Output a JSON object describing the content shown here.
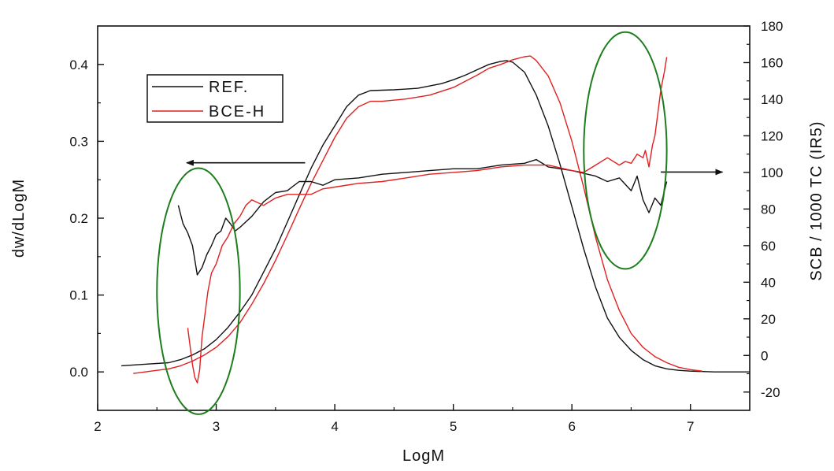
{
  "chart_data": {
    "type": "line",
    "xlabel": "LogM",
    "ylabel_left": "dw/dLogM",
    "ylabel_right": "SCB / 1000 TC (IR5)",
    "xlim": [
      2,
      7.5
    ],
    "ylim_left": [
      -0.05,
      0.45
    ],
    "ylim_right": [
      -30,
      180
    ],
    "xticks": [
      "2",
      "3",
      "4",
      "5",
      "6",
      "7"
    ],
    "yticks_left": [
      "0.0",
      "0.1",
      "0.2",
      "0.3",
      "0.4"
    ],
    "yticks_right": [
      "-20",
      "0",
      "20",
      "40",
      "60",
      "80",
      "100",
      "120",
      "140",
      "160",
      "180"
    ],
    "legend": {
      "position": "top-left",
      "entries": [
        "REF.",
        "BCE-H"
      ]
    },
    "colors": {
      "REF.": "#111111",
      "BCE-H": "#e02020",
      "highlight": "#1e7d1e"
    },
    "series": [
      {
        "name": "REF.",
        "axis": "left",
        "x": [
          2.2,
          2.4,
          2.6,
          2.7,
          2.8,
          2.9,
          3.0,
          3.1,
          3.2,
          3.3,
          3.4,
          3.5,
          3.6,
          3.7,
          3.8,
          3.9,
          4.0,
          4.1,
          4.2,
          4.3,
          4.5,
          4.7,
          4.9,
          5.0,
          5.1,
          5.2,
          5.3,
          5.4,
          5.45,
          5.5,
          5.6,
          5.7,
          5.8,
          5.9,
          6.0,
          6.1,
          6.2,
          6.3,
          6.4,
          6.5,
          6.6,
          6.7,
          6.8,
          6.9,
          7.0,
          7.2,
          7.5
        ],
        "y": [
          0.008,
          0.01,
          0.012,
          0.016,
          0.022,
          0.03,
          0.042,
          0.058,
          0.078,
          0.1,
          0.13,
          0.16,
          0.195,
          0.23,
          0.265,
          0.295,
          0.32,
          0.345,
          0.36,
          0.366,
          0.367,
          0.369,
          0.375,
          0.38,
          0.386,
          0.393,
          0.4,
          0.404,
          0.405,
          0.403,
          0.39,
          0.36,
          0.32,
          0.27,
          0.215,
          0.16,
          0.11,
          0.07,
          0.045,
          0.028,
          0.016,
          0.008,
          0.004,
          0.002,
          0.001,
          0.0,
          0.0
        ]
      },
      {
        "name": "BCE-H",
        "axis": "left",
        "x": [
          2.3,
          2.5,
          2.6,
          2.7,
          2.8,
          2.9,
          3.0,
          3.1,
          3.2,
          3.3,
          3.4,
          3.5,
          3.6,
          3.7,
          3.8,
          3.9,
          4.0,
          4.1,
          4.2,
          4.3,
          4.4,
          4.6,
          4.8,
          5.0,
          5.1,
          5.2,
          5.3,
          5.4,
          5.5,
          5.6,
          5.65,
          5.7,
          5.8,
          5.9,
          6.0,
          6.1,
          6.2,
          6.3,
          6.4,
          6.5,
          6.6,
          6.7,
          6.8,
          6.9,
          7.0,
          7.1
        ],
        "y": [
          -0.002,
          0.002,
          0.004,
          0.008,
          0.014,
          0.022,
          0.032,
          0.046,
          0.064,
          0.088,
          0.115,
          0.145,
          0.178,
          0.212,
          0.245,
          0.275,
          0.305,
          0.33,
          0.345,
          0.352,
          0.352,
          0.355,
          0.36,
          0.37,
          0.378,
          0.386,
          0.395,
          0.4,
          0.406,
          0.41,
          0.411,
          0.405,
          0.385,
          0.35,
          0.3,
          0.24,
          0.175,
          0.12,
          0.08,
          0.05,
          0.032,
          0.02,
          0.012,
          0.006,
          0.003,
          0.001
        ]
      },
      {
        "name": "REF. SCB",
        "axis": "right",
        "x": [
          2.68,
          2.72,
          2.76,
          2.8,
          2.84,
          2.88,
          2.92,
          2.96,
          3.0,
          3.04,
          3.08,
          3.12,
          3.16,
          3.2,
          3.3,
          3.4,
          3.5,
          3.6,
          3.7,
          3.8,
          3.9,
          4.0,
          4.2,
          4.4,
          4.6,
          4.8,
          5.0,
          5.2,
          5.4,
          5.6,
          5.7,
          5.8,
          6.0,
          6.2,
          6.3,
          6.4,
          6.5,
          6.55,
          6.6,
          6.65,
          6.7,
          6.75,
          6.8
        ],
        "y": [
          82,
          72,
          67,
          60,
          44,
          48,
          55,
          60,
          66,
          68,
          75,
          72,
          68,
          70,
          76,
          84,
          89,
          90,
          95,
          95,
          93,
          96,
          97,
          99,
          100,
          101,
          102,
          102,
          104,
          105,
          107,
          103,
          101,
          98,
          95,
          97,
          90,
          98,
          85,
          78,
          86,
          82,
          95
        ]
      },
      {
        "name": "BCE-H SCB",
        "axis": "right",
        "x": [
          2.76,
          2.78,
          2.8,
          2.82,
          2.84,
          2.86,
          2.88,
          2.9,
          2.93,
          2.96,
          3.0,
          3.05,
          3.1,
          3.15,
          3.2,
          3.25,
          3.3,
          3.4,
          3.5,
          3.6,
          3.7,
          3.8,
          3.9,
          4.0,
          4.2,
          4.4,
          4.6,
          4.8,
          5.0,
          5.2,
          5.4,
          5.6,
          5.8,
          6.0,
          6.1,
          6.2,
          6.3,
          6.4,
          6.45,
          6.5,
          6.55,
          6.6,
          6.62,
          6.65,
          6.68,
          6.7,
          6.72,
          6.75,
          6.78,
          6.8
        ],
        "y": [
          15,
          5,
          -5,
          -12,
          -15,
          -8,
          10,
          20,
          35,
          45,
          50,
          60,
          65,
          72,
          76,
          82,
          85,
          82,
          86,
          88,
          88,
          88,
          91,
          92,
          94,
          95,
          97,
          99,
          100,
          101,
          103,
          104,
          104,
          101,
          100,
          104,
          108,
          104,
          106,
          105,
          110,
          108,
          112,
          103,
          115,
          120,
          130,
          145,
          155,
          163
        ]
      }
    ],
    "annotations": [
      {
        "type": "arrow",
        "direction": "left",
        "from": [
          3.75,
          0.272
        ],
        "to": [
          2.75,
          0.272
        ],
        "axis": "left"
      },
      {
        "type": "arrow",
        "direction": "right",
        "from": [
          6.75,
          0.26
        ],
        "to": [
          7.27,
          0.26
        ],
        "axis": "left"
      },
      {
        "type": "ellipse",
        "center": [
          2.85,
          0.105
        ],
        "radii": [
          0.35,
          0.16
        ],
        "axis": "left"
      },
      {
        "type": "ellipse",
        "center": [
          6.45,
          0.288
        ],
        "radii": [
          0.35,
          0.154
        ],
        "axis": "left"
      }
    ]
  }
}
